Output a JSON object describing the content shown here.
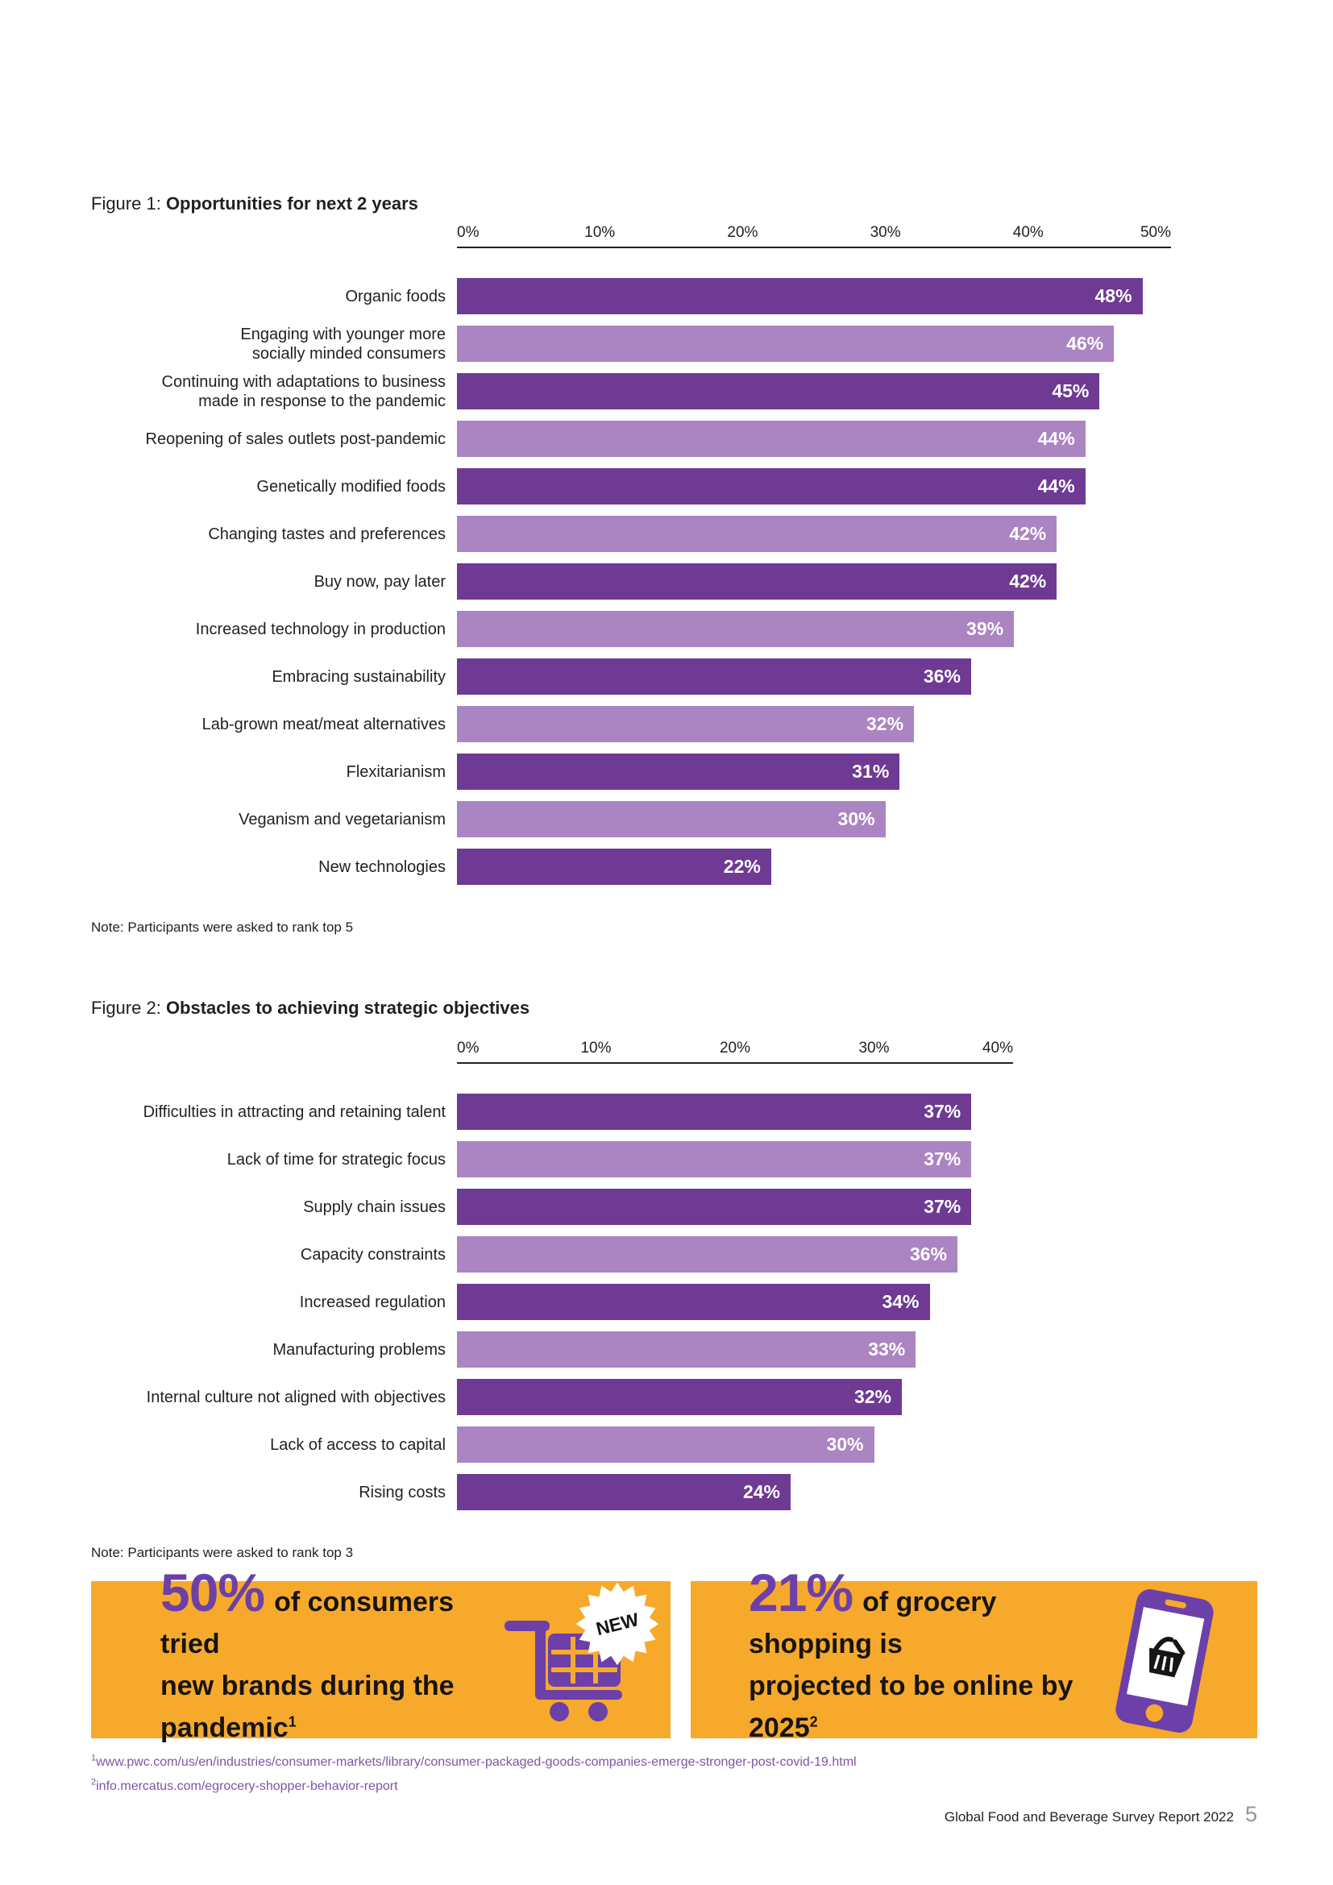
{
  "figure1": {
    "figure_label": "Figure 1: ",
    "chart_data": {
      "type": "bar",
      "orientation": "horizontal",
      "title": "Opportunities for next 2 years",
      "note": "Note: Participants were asked to rank top 5",
      "categories": [
        "Organic foods",
        "Engaging with younger more\nsocially minded consumers",
        "Continuing with adaptations to business\nmade in response to the pandemic",
        "Reopening of sales outlets post-pandemic",
        "Genetically modified foods",
        "Changing tastes and preferences",
        "Buy now, pay later",
        "Increased technology in production",
        "Embracing sustainability",
        "Lab-grown meat/meat alternatives",
        "Flexitarianism",
        "Veganism and vegetarianism",
        "New technologies"
      ],
      "values": [
        48,
        46,
        45,
        44,
        44,
        42,
        42,
        39,
        36,
        32,
        31,
        30,
        22
      ],
      "value_suffix": "%",
      "xlim": [
        0,
        50
      ],
      "ticks": [
        "0%",
        "10%",
        "20%",
        "30%",
        "40%",
        "50%"
      ],
      "xlabel": "",
      "ylabel": "",
      "grid": false,
      "legend": false,
      "bar_colors_alternating": [
        "#6E3A93",
        "#AB84C2"
      ],
      "value_label_color": "#FFFFFF"
    }
  },
  "figure2": {
    "figure_label": "Figure 2: ",
    "chart_data": {
      "type": "bar",
      "orientation": "horizontal",
      "title": "Obstacles to achieving strategic objectives",
      "note": "Note: Participants were asked to rank top 3",
      "categories": [
        "Difficulties in attracting and retaining talent",
        "Lack of time for strategic focus",
        "Supply chain issues",
        "Capacity constraints",
        "Increased regulation",
        "Manufacturing problems",
        "Internal culture not aligned with objectives",
        "Lack of access to capital",
        "Rising costs"
      ],
      "values": [
        37,
        37,
        37,
        36,
        34,
        33,
        32,
        30,
        24
      ],
      "value_suffix": "%",
      "xlim": [
        0,
        40
      ],
      "ticks": [
        "0%",
        "10%",
        "20%",
        "30%",
        "40%"
      ],
      "xlabel": "",
      "ylabel": "",
      "grid": false,
      "legend": false,
      "bar_colors_alternating": [
        "#6E3A93",
        "#AB84C2"
      ],
      "value_label_color": "#FFFFFF"
    }
  },
  "highlights": [
    {
      "value": "50%",
      "line1": "of consumers tried",
      "line2": "new brands during the pandemic",
      "footnote_marker": "1",
      "badge": "NEW",
      "icon": "shopping-cart-icon"
    },
    {
      "value": "21%",
      "line1": "of grocery shopping is",
      "line2": "projected to be online by 2025",
      "footnote_marker": "2",
      "icon": "smartphone-basket-icon"
    }
  ],
  "footnotes": [
    {
      "marker": "1",
      "url": "www.pwc.com/us/en/industries/consumer-markets/library/consumer-packaged-goods-companies-emerge-stronger-post-covid-19.html"
    },
    {
      "marker": "2",
      "url": "info.mercatus.com/egrocery-shopper-behavior-report"
    }
  ],
  "footer": {
    "report_title": "Global Food and Beverage Survey Report 2022",
    "page_number": "5"
  },
  "colors": {
    "bar_dark": "#6E3A93",
    "bar_light": "#AB84C2",
    "highlight_yellow": "#F7A92C",
    "accent_purple": "#6C40A8",
    "footnote_purple": "#7E55A2",
    "page_number_gray": "#939598",
    "text_dark": "#231F20"
  }
}
